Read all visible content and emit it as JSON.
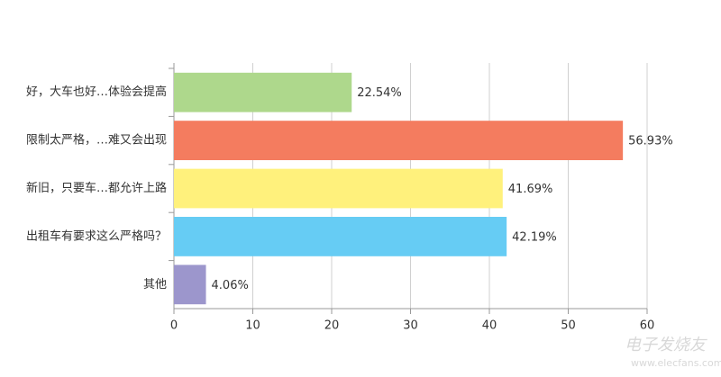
{
  "chart_data": {
    "type": "bar",
    "orientation": "horizontal",
    "categories": [
      "好，大车也好…体验会提高",
      "限制太严格，…难又会出现",
      "新旧，只要车…都允许上路",
      "出租车有要求这么严格吗？",
      "其他"
    ],
    "values": [
      22.54,
      56.93,
      41.69,
      42.19,
      4.06
    ],
    "value_labels": [
      "22.54%",
      "56.93%",
      "41.69%",
      "42.19%",
      "4.06%"
    ],
    "colors": [
      "#aed88c",
      "#f47c5f",
      "#fff17c",
      "#66ccf4",
      "#9c96cc"
    ],
    "xlim": [
      0,
      60
    ],
    "xticks": [
      0,
      10,
      20,
      30,
      40,
      50,
      60
    ],
    "grid": true
  },
  "watermark": {
    "brand": "电子发烧友",
    "url": "www.elecfans.com"
  }
}
